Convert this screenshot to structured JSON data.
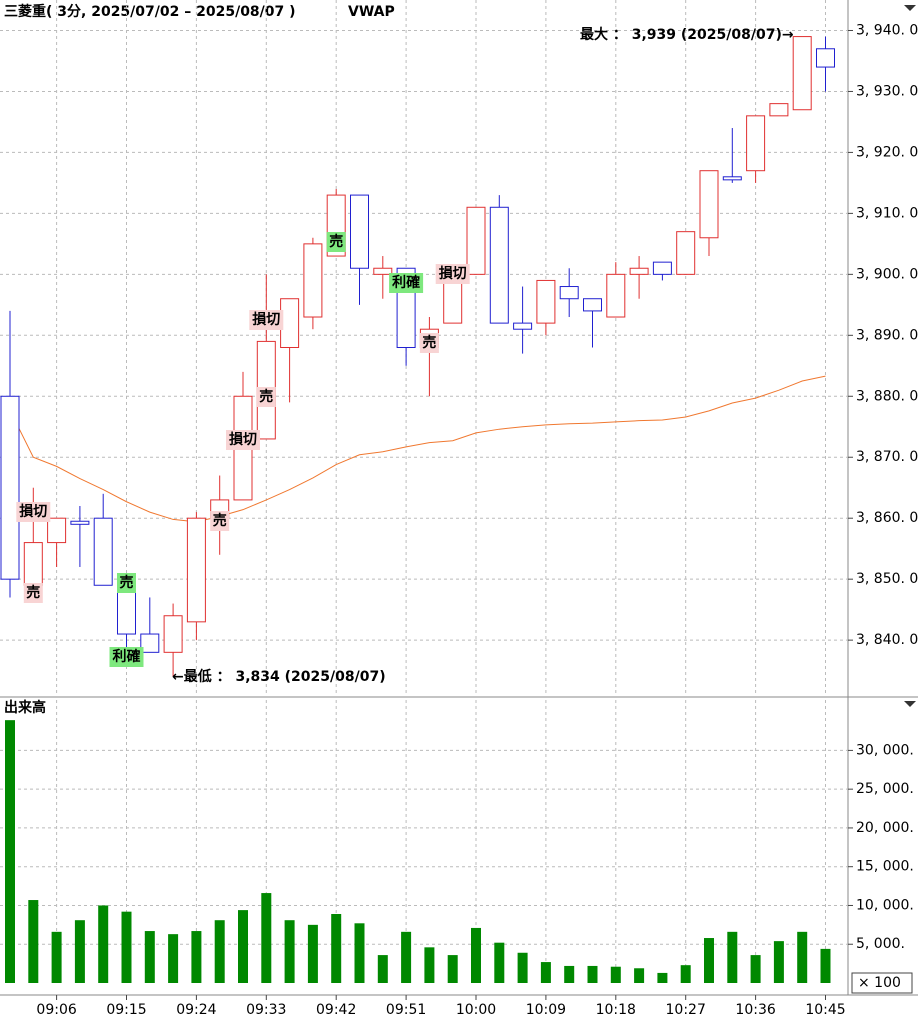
{
  "chart_data": [
    {
      "type": "candlestick",
      "title": "三菱重( 3分, 2025/07/02 – 2025/08/07 )",
      "open": [
        3880,
        3849,
        3856,
        3859.5,
        3860,
        3849,
        3841,
        3838,
        3843,
        3860,
        3863,
        3873,
        3888,
        3893,
        3903,
        3913,
        3900,
        3901,
        3888,
        3892,
        3900,
        3911,
        3892,
        3892,
        3898,
        3896,
        3893,
        3900,
        3902,
        3900,
        3906,
        3916,
        3917,
        3926,
        3927,
        3937
      ],
      "high": [
        3894,
        3865,
        3860,
        3862,
        3864,
        3849,
        3847,
        3846,
        3861,
        3867,
        3884,
        3900,
        3896,
        3906,
        3914,
        3913,
        3903,
        3901,
        3893,
        3900,
        3911,
        3913,
        3898,
        3899,
        3901,
        3896,
        3902,
        3903,
        3902,
        3907,
        3917,
        3924,
        3926,
        3928,
        3939,
        3939
      ],
      "low": [
        3847,
        3849,
        3852,
        3852,
        3849,
        3838,
        3838,
        3834,
        3840,
        3854,
        3863,
        3873,
        3879,
        3891,
        3903,
        3895,
        3896,
        3885,
        3880,
        3892,
        3900,
        3892,
        3887,
        3890,
        3893,
        3888,
        3893,
        3896,
        3899,
        3900,
        3903,
        3915,
        3915,
        3926,
        3927,
        3930
      ],
      "close": [
        3850,
        3856,
        3860,
        3859,
        3849,
        3841,
        3838,
        3844,
        3860,
        3863,
        3880,
        3889,
        3896,
        3905,
        3913,
        3901,
        3901,
        3888,
        3891,
        3900,
        3911,
        3892,
        3891,
        3899,
        3896,
        3894,
        3900,
        3901,
        3900,
        3907,
        3917,
        3915.5,
        3926,
        3928,
        3939,
        3934
      ],
      "up_color": "#e03030",
      "down_color": "#2020d0",
      "vwap": {
        "name": "VWAP",
        "color": "#f07830",
        "values": [
          3877.7,
          3870,
          3868.5,
          3866.5,
          3864.7,
          3862.7,
          3861,
          3859.8,
          3859.4,
          3860.3,
          3861.4,
          3863,
          3864.7,
          3866.6,
          3868.8,
          3870.4,
          3870.9,
          3871.7,
          3872.4,
          3872.7,
          3874,
          3874.6,
          3875,
          3875.3,
          3875.5,
          3875.6,
          3875.8,
          3876,
          3876.1,
          3876.6,
          3877.6,
          3878.9,
          3879.7,
          3881,
          3882.5,
          3883.3
        ]
      },
      "max_label": "最大 ： 3,939 (2025/08/07)→",
      "min_label": "←最低 ： 3,834 (2025/08/07)",
      "signals": [
        {
          "text": "損切",
          "index": 1,
          "color": "#f8d4d4"
        },
        {
          "text": "売",
          "index": 1,
          "color": "#f8d4d4"
        },
        {
          "text": "売",
          "index": 5,
          "color": "#7ee87e"
        },
        {
          "text": "利確",
          "index": 5,
          "color": "#7ee87e"
        },
        {
          "text": "売",
          "index": 9,
          "color": "#f8d4d4"
        },
        {
          "text": "損切",
          "index": 10,
          "color": "#f8d4d4"
        },
        {
          "text": "売",
          "index": 11,
          "color": "#f8d4d4"
        },
        {
          "text": "損切",
          "index": 11,
          "color": "#f8d4d4"
        },
        {
          "text": "売",
          "index": 14,
          "color": "#7ee87e"
        },
        {
          "text": "利確",
          "index": 17,
          "color": "#7ee87e"
        },
        {
          "text": "売",
          "index": 18,
          "color": "#f8d4d4"
        },
        {
          "text": "損切",
          "index": 19,
          "color": "#f8d4d4"
        }
      ],
      "ylim": [
        3831,
        3945
      ],
      "yticks": [
        {
          "value": 3840,
          "label": "3, 840. 0"
        },
        {
          "value": 3850,
          "label": "3, 850. 0"
        },
        {
          "value": 3860,
          "label": "3, 860. 0"
        },
        {
          "value": 3870,
          "label": "3, 870. 0"
        },
        {
          "value": 3880,
          "label": "3, 880. 0"
        },
        {
          "value": 3890,
          "label": "3, 890. 0"
        },
        {
          "value": 3900,
          "label": "3, 900. 0"
        },
        {
          "value": 3910,
          "label": "3, 910. 0"
        },
        {
          "value": 3920,
          "label": "3, 920. 0"
        },
        {
          "value": 3930,
          "label": "3, 930. 0"
        },
        {
          "value": 3940,
          "label": "3, 940. 0"
        }
      ],
      "grid": true
    },
    {
      "type": "bar",
      "title": "出来高",
      "unit_label": "× 100",
      "categories": [
        null,
        null,
        "09:06",
        null,
        null,
        "09:15",
        null,
        null,
        "09:24",
        null,
        null,
        "09:33",
        null,
        null,
        "09:42",
        null,
        null,
        "09:51",
        null,
        null,
        "10:00",
        null,
        null,
        "10:09",
        null,
        null,
        "10:18",
        null,
        null,
        "10:27",
        null,
        null,
        "10:36",
        null,
        null,
        "10:45"
      ],
      "values": [
        33900,
        10700,
        6600,
        8100,
        10000,
        9200,
        6700,
        6300,
        6700,
        8100,
        9400,
        11600,
        8100,
        7500,
        8900,
        7700,
        3600,
        6600,
        4600,
        3600,
        7100,
        5200,
        3900,
        2700,
        2200,
        2200,
        2100,
        1900,
        1300,
        2300,
        5800,
        6600,
        3600,
        5400,
        6600,
        4400
      ],
      "color": "#008800",
      "ylim": [
        0,
        36500
      ],
      "yticks": [
        {
          "value": 5000,
          "label": "5, 000."
        },
        {
          "value": 10000,
          "label": "10, 000."
        },
        {
          "value": 15000,
          "label": "15, 000."
        },
        {
          "value": 20000,
          "label": "20, 000."
        },
        {
          "value": 25000,
          "label": "25, 000."
        },
        {
          "value": 30000,
          "label": "30, 000."
        }
      ],
      "grid": true
    }
  ]
}
